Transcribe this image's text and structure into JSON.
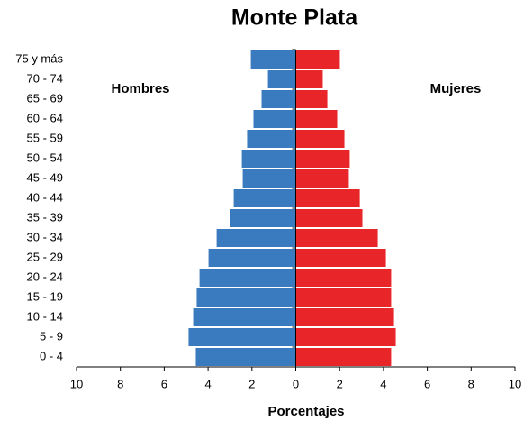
{
  "chart_data": {
    "type": "pyramid",
    "title": "Monte Plata",
    "xlabel": "Porcentajes",
    "categories": [
      "0 - 4",
      "5 - 9",
      "10 - 14",
      "15 - 19",
      "20 - 24",
      "25 - 29",
      "30 - 34",
      "35 - 39",
      "40 - 44",
      "45 - 49",
      "50 - 54",
      "55 - 59",
      "60 - 64",
      "65 - 69",
      "70 - 74",
      "75 y más"
    ],
    "series": [
      {
        "name": "Hombres",
        "color": "#3a7bbf",
        "values": [
          -4.56,
          -4.89,
          -4.68,
          -4.52,
          -4.39,
          -3.98,
          -3.61,
          -3.0,
          -2.83,
          -2.42,
          -2.46,
          -2.22,
          -1.93,
          -1.56,
          -1.27,
          -2.05
        ]
      },
      {
        "name": "Mujeres",
        "color": "#e8262a",
        "values": [
          4.35,
          4.56,
          4.48,
          4.35,
          4.35,
          4.11,
          3.74,
          3.04,
          2.92,
          2.42,
          2.46,
          2.22,
          1.89,
          1.44,
          1.23,
          2.01
        ]
      }
    ],
    "xlim": [
      -10,
      10
    ],
    "xticks": [
      {
        "value": -10,
        "label": "10"
      },
      {
        "value": -8,
        "label": "8"
      },
      {
        "value": -6,
        "label": "6"
      },
      {
        "value": -4,
        "label": "4"
      },
      {
        "value": -2,
        "label": "2"
      },
      0,
      2,
      4,
      6,
      8,
      10
    ],
    "xtick_label_colors": {
      "negative": "#cc2222",
      "positive": "#000000"
    }
  }
}
